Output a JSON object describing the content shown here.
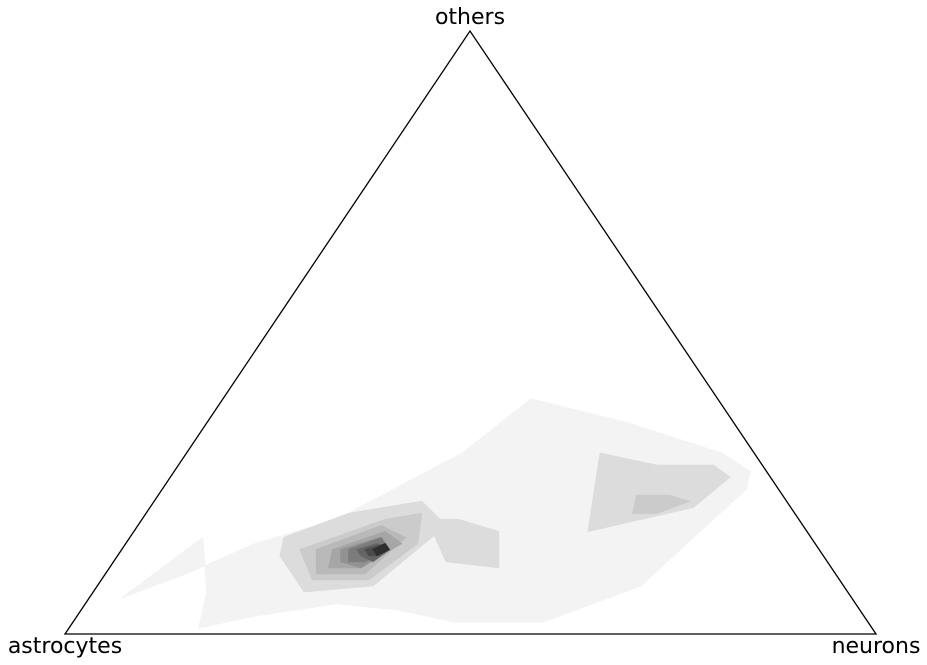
{
  "chart_data": {
    "type": "ternary-density-contour",
    "title": "",
    "axes": {
      "top": "others",
      "bottom_left": "astrocytes",
      "bottom_right": "neurons"
    },
    "grid": false,
    "legend": "none",
    "colormap": "greys",
    "fill_levels": [
      "#f3f3f3",
      "#dcdcdc",
      "#cbcbcb",
      "#b9b9b9",
      "#a6a6a6",
      "#929292",
      "#7c7c7c",
      "#656565",
      "#4b4b4b",
      "#2f2f2f",
      "#101010"
    ],
    "edge_color": "#000000",
    "contours": [
      {
        "level": 1,
        "polygons": [
          [
            [
              0.04,
              0.06,
              0.9
            ],
            [
              0.1,
              0.1,
              0.8
            ],
            [
              0.16,
              0.15,
              0.69
            ],
            [
              0.24,
              0.19,
              0.57
            ],
            [
              0.34,
              0.3,
              0.36
            ],
            [
              0.38,
              0.39,
              0.23
            ],
            [
              0.52,
              0.35,
              0.13
            ],
            [
              0.66,
              0.3,
              0.04
            ],
            [
              0.71,
              0.27,
              0.02
            ],
            [
              0.72,
              0.24,
              0.04
            ],
            [
              0.67,
              0.08,
              0.25
            ],
            [
              0.58,
              0.02,
              0.4
            ],
            [
              0.47,
              0.02,
              0.51
            ],
            [
              0.39,
              0.04,
              0.57
            ],
            [
              0.31,
              0.05,
              0.64
            ],
            [
              0.22,
              0.03,
              0.75
            ],
            [
              0.16,
              0.01,
              0.83
            ],
            [
              0.14,
              0.07,
              0.79
            ],
            [
              0.09,
              0.16,
              0.75
            ],
            [
              0.04,
              0.06,
              0.9
            ]
          ]
        ]
      },
      {
        "level": 2,
        "polygons": [
          [
            [
              0.32,
              0.19,
              0.49
            ],
            [
              0.36,
              0.18,
              0.46
            ],
            [
              0.41,
              0.12,
              0.47
            ],
            [
              0.48,
              0.11,
              0.41
            ],
            [
              0.45,
              0.17,
              0.38
            ],
            [
              0.39,
              0.19,
              0.42
            ],
            [
              0.34,
              0.19,
              0.47
            ],
            [
              0.32,
              0.19,
              0.49
            ]
          ],
          [
            [
              0.51,
              0.3,
              0.19
            ],
            [
              0.59,
              0.28,
              0.13
            ],
            [
              0.66,
              0.28,
              0.06
            ],
            [
              0.69,
              0.26,
              0.05
            ],
            [
              0.67,
              0.21,
              0.12
            ],
            [
              0.56,
              0.17,
              0.27
            ],
            [
              0.51,
              0.3,
              0.19
            ]
          ],
          [
            [
              0.19,
              0.16,
              0.65
            ],
            [
              0.25,
              0.2,
              0.55
            ],
            [
              0.33,
              0.22,
              0.45
            ],
            [
              0.38,
              0.18,
              0.44
            ],
            [
              0.34,
              0.08,
              0.58
            ],
            [
              0.26,
              0.07,
              0.67
            ],
            [
              0.2,
              0.13,
              0.67
            ],
            [
              0.19,
              0.16,
              0.65
            ]
          ]
        ]
      },
      {
        "level": 3,
        "polygons": [
          [
            [
              0.59,
              0.23,
              0.18
            ],
            [
              0.63,
              0.23,
              0.14
            ],
            [
              0.66,
              0.22,
              0.12
            ],
            [
              0.63,
              0.2,
              0.17
            ],
            [
              0.6,
              0.2,
              0.2
            ],
            [
              0.59,
              0.23,
              0.18
            ]
          ]
        ]
      },
      {
        "level": 3,
        "polygons": [
          [
            [
              0.22,
              0.14,
              0.64
            ],
            [
              0.3,
              0.19,
              0.51
            ],
            [
              0.34,
              0.2,
              0.46
            ],
            [
              0.36,
              0.15,
              0.49
            ],
            [
              0.33,
              0.09,
              0.58
            ],
            [
              0.26,
              0.09,
              0.65
            ],
            [
              0.22,
              0.14,
              0.64
            ]
          ]
        ]
      },
      {
        "level": 4,
        "polygons": [
          [
            [
              0.24,
              0.14,
              0.62
            ],
            [
              0.3,
              0.18,
              0.52
            ],
            [
              0.34,
              0.16,
              0.5
            ],
            [
              0.32,
              0.1,
              0.58
            ],
            [
              0.26,
              0.1,
              0.64
            ],
            [
              0.24,
              0.14,
              0.62
            ]
          ]
        ]
      },
      {
        "level": 5,
        "polygons": [
          [
            [
              0.26,
              0.14,
              0.6
            ],
            [
              0.31,
              0.17,
              0.52
            ],
            [
              0.34,
              0.15,
              0.51
            ],
            [
              0.31,
              0.11,
              0.58
            ],
            [
              0.27,
              0.11,
              0.62
            ],
            [
              0.26,
              0.14,
              0.6
            ]
          ]
        ]
      },
      {
        "level": 6,
        "polygons": [
          [
            [
              0.27,
              0.14,
              0.59
            ],
            [
              0.31,
              0.16,
              0.53
            ],
            [
              0.33,
              0.14,
              0.53
            ],
            [
              0.31,
              0.11,
              0.58
            ],
            [
              0.28,
              0.12,
              0.6
            ],
            [
              0.27,
              0.14,
              0.59
            ]
          ]
        ]
      },
      {
        "level": 7,
        "polygons": [
          [
            [
              0.28,
              0.14,
              0.58
            ],
            [
              0.31,
              0.16,
              0.53
            ],
            [
              0.33,
              0.14,
              0.53
            ],
            [
              0.31,
              0.12,
              0.57
            ],
            [
              0.29,
              0.12,
              0.59
            ],
            [
              0.28,
              0.14,
              0.58
            ]
          ]
        ]
      },
      {
        "level": 8,
        "polygons": [
          [
            [
              0.29,
              0.14,
              0.57
            ],
            [
              0.31,
              0.15,
              0.54
            ],
            [
              0.33,
              0.14,
              0.53
            ],
            [
              0.32,
              0.12,
              0.56
            ],
            [
              0.3,
              0.13,
              0.57
            ],
            [
              0.29,
              0.14,
              0.57
            ]
          ]
        ]
      },
      {
        "level": 9,
        "polygons": [
          [
            [
              0.3,
              0.14,
              0.56
            ],
            [
              0.32,
              0.15,
              0.53
            ],
            [
              0.33,
              0.14,
              0.53
            ],
            [
              0.32,
              0.13,
              0.55
            ],
            [
              0.31,
              0.13,
              0.56
            ],
            [
              0.3,
              0.14,
              0.56
            ]
          ]
        ]
      },
      {
        "level": 10,
        "polygons": [
          [
            [
              0.31,
              0.14,
              0.55
            ],
            [
              0.32,
              0.15,
              0.53
            ],
            [
              0.33,
              0.14,
              0.53
            ],
            [
              0.32,
              0.13,
              0.55
            ],
            [
              0.31,
              0.14,
              0.55
            ]
          ]
        ]
      }
    ]
  }
}
